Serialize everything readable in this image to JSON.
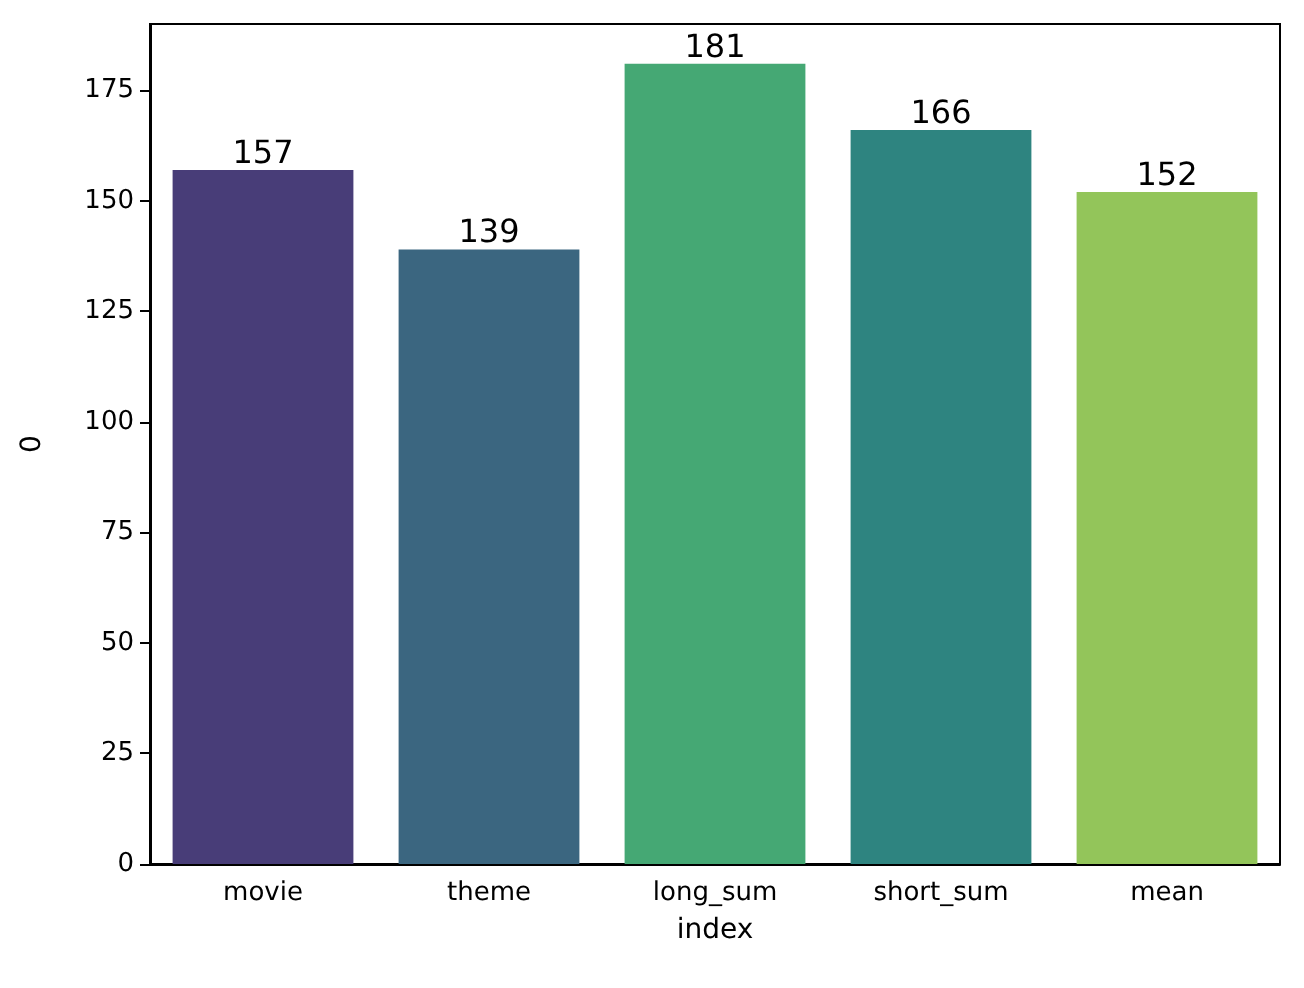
{
  "chart_data": {
    "type": "bar",
    "xlabel": "index",
    "ylabel": "0",
    "categories": [
      "movie",
      "theme",
      "long_sum",
      "short_sum",
      "mean"
    ],
    "values": [
      157,
      139,
      181,
      166,
      152
    ],
    "colors": [
      "#483d78",
      "#3b6680",
      "#45a874",
      "#2e8480",
      "#93c55a"
    ],
    "ylim": [
      0,
      190
    ],
    "yticks": [
      0,
      25,
      50,
      75,
      100,
      125,
      150,
      175
    ],
    "data_labels": true,
    "grid": false
  }
}
